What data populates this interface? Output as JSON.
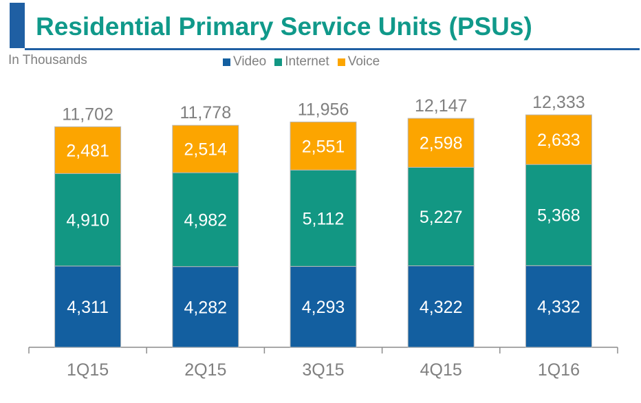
{
  "header": {
    "title": "Residential Primary Service Units (PSUs)",
    "units_note": "In Thousands",
    "accent_color": "#1f5fa3",
    "title_color": "#10998a"
  },
  "legend": {
    "items": [
      {
        "label": "Video",
        "color": "#135fa0"
      },
      {
        "label": "Internet",
        "color": "#129783"
      },
      {
        "label": "Voice",
        "color": "#fca500"
      }
    ]
  },
  "chart_data": {
    "type": "bar",
    "stacked": true,
    "categories": [
      "1Q15",
      "2Q15",
      "3Q15",
      "4Q15",
      "1Q16"
    ],
    "series": [
      {
        "name": "Video",
        "color": "#135fa0",
        "values": [
          4311,
          4282,
          4293,
          4322,
          4332
        ],
        "labels": [
          "4,311",
          "4,282",
          "4,293",
          "4,322",
          "4,332"
        ]
      },
      {
        "name": "Internet",
        "color": "#129783",
        "values": [
          4910,
          4982,
          5112,
          5227,
          5368
        ],
        "labels": [
          "4,910",
          "4,982",
          "5,112",
          "5,227",
          "5,368"
        ]
      },
      {
        "name": "Voice",
        "color": "#fca500",
        "values": [
          2481,
          2514,
          2551,
          2598,
          2633
        ],
        "labels": [
          "2,481",
          "2,514",
          "2,551",
          "2,598",
          "2,633"
        ]
      }
    ],
    "totals": [
      "11,702",
      "11,778",
      "11,956",
      "12,147",
      "12,333"
    ],
    "title": "Residential Primary Service Units (PSUs)",
    "ylabel": "In Thousands",
    "legend_position": "top-center",
    "grid": false,
    "ylim": [
      0,
      12333
    ]
  }
}
